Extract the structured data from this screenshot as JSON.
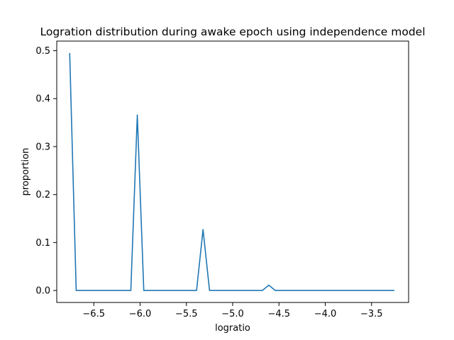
{
  "chart_data": {
    "type": "line",
    "title": "Logration distribution during awake epoch using independence model",
    "xlabel": "logratio",
    "ylabel": "proportion",
    "xlim": [
      -6.9,
      -3.1
    ],
    "ylim": [
      -0.025,
      0.52
    ],
    "x_ticks": [
      {
        "value": -6.5,
        "label": "−6.5"
      },
      {
        "value": -6.0,
        "label": "−6.0"
      },
      {
        "value": -5.5,
        "label": "−5.5"
      },
      {
        "value": -5.0,
        "label": "−5.0"
      },
      {
        "value": -4.5,
        "label": "−4.5"
      },
      {
        "value": -4.0,
        "label": "−4.0"
      },
      {
        "value": -3.5,
        "label": "−3.5"
      }
    ],
    "y_ticks": [
      {
        "value": 0.0,
        "label": "0.0"
      },
      {
        "value": 0.1,
        "label": "0.1"
      },
      {
        "value": 0.2,
        "label": "0.2"
      },
      {
        "value": 0.3,
        "label": "0.3"
      },
      {
        "value": 0.4,
        "label": "0.4"
      },
      {
        "value": 0.5,
        "label": "0.5"
      }
    ],
    "grid": false,
    "line_color": "#1f77b4",
    "series": [
      {
        "x": [
          -6.76,
          -6.69,
          -6.1,
          -6.03,
          -5.96,
          -5.39,
          -5.32,
          -5.25,
          -4.68,
          -4.61,
          -4.54,
          -3.26
        ],
        "values": [
          0.494,
          0.0,
          0.0,
          0.366,
          0.0,
          0.0,
          0.127,
          0.0,
          0.0,
          0.011,
          0.0,
          0.0
        ]
      }
    ]
  }
}
